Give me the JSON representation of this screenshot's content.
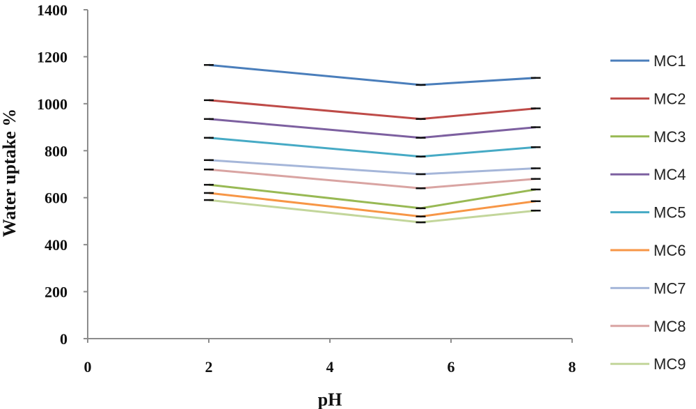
{
  "chart_data": {
    "type": "line",
    "title": "",
    "xlabel": "pH",
    "ylabel": "Water uptake %",
    "xlim": [
      0,
      8
    ],
    "ylim": [
      0,
      1400
    ],
    "x_ticks": [
      0,
      2,
      4,
      6,
      8
    ],
    "y_ticks": [
      0,
      200,
      400,
      600,
      800,
      1000,
      1200,
      1400
    ],
    "grid": false,
    "legend_position": "right",
    "x": [
      2,
      5.5,
      7.4
    ],
    "series": [
      {
        "name": "MC1",
        "color": "#4a7ebb",
        "values": [
          1165,
          1080,
          1110
        ]
      },
      {
        "name": "MC2",
        "color": "#be4b48",
        "values": [
          1015,
          935,
          980
        ]
      },
      {
        "name": "MC3",
        "color": "#98b954",
        "values": [
          655,
          555,
          635
        ]
      },
      {
        "name": "MC4",
        "color": "#7d60a0",
        "values": [
          935,
          855,
          900
        ]
      },
      {
        "name": "MC5",
        "color": "#46aac5",
        "values": [
          855,
          775,
          815
        ]
      },
      {
        "name": "MC6",
        "color": "#f79646",
        "values": [
          620,
          520,
          585
        ]
      },
      {
        "name": "MC7",
        "color": "#a5b6d9",
        "values": [
          760,
          700,
          725
        ]
      },
      {
        "name": "MC8",
        "color": "#d9a4a2",
        "values": [
          720,
          640,
          680
        ]
      },
      {
        "name": "MC9",
        "color": "#c3d69b",
        "values": [
          590,
          495,
          545
        ]
      }
    ]
  }
}
